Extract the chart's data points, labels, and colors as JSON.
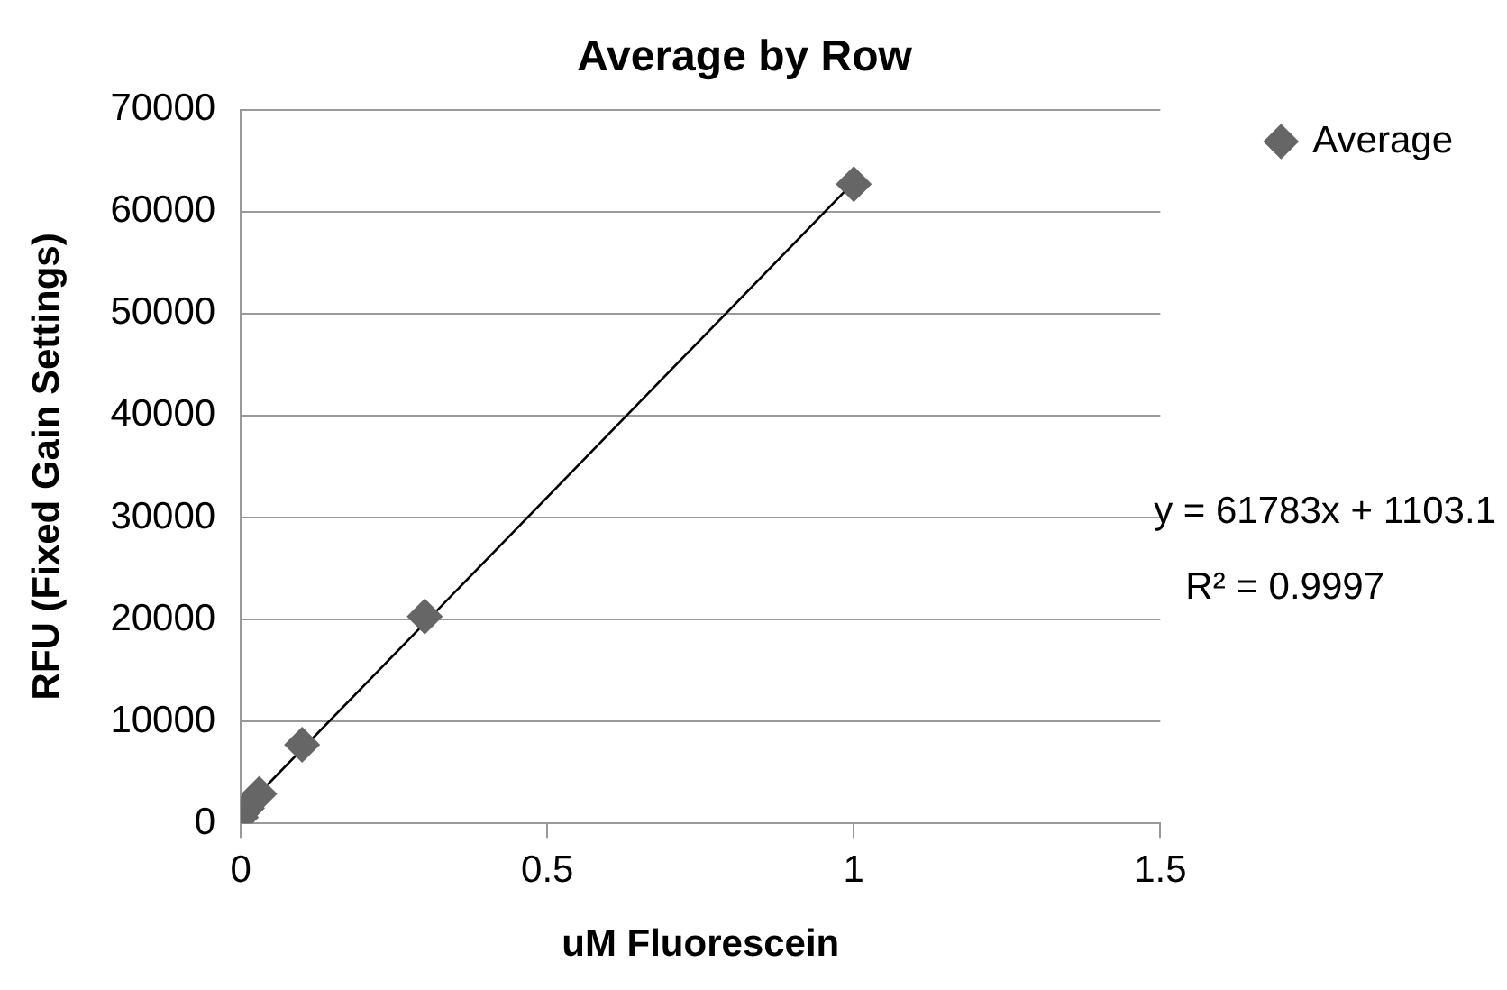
{
  "chart_data": {
    "type": "scatter",
    "title": "Average by Row",
    "xlabel": "uM Fluorescein",
    "ylabel": "RFU (Fixed Gain Settings)",
    "series": [
      {
        "name": "Average",
        "color": "#666666",
        "x": [
          0,
          0.01,
          0.03,
          0.1,
          0.3,
          1
        ],
        "values": [
          600,
          1500,
          2900,
          7700,
          20300,
          62700
        ],
        "marker": "diamond"
      },
      {
        "type": "line",
        "color": "#000000",
        "x": [
          0,
          1
        ],
        "values": [
          1100,
          62900
        ],
        "marker": "none"
      }
    ],
    "xlim": [
      0,
      1.5
    ],
    "xticks": [
      0,
      0.5,
      1,
      1.5
    ],
    "ylim": [
      0,
      70000
    ],
    "yticks": [
      0,
      10000,
      20000,
      30000,
      40000,
      50000,
      60000,
      70000
    ],
    "grid": "y",
    "legend": "right",
    "annotations": [
      "y = 61783x + 1103.1",
      "R² = 0.9997"
    ]
  }
}
